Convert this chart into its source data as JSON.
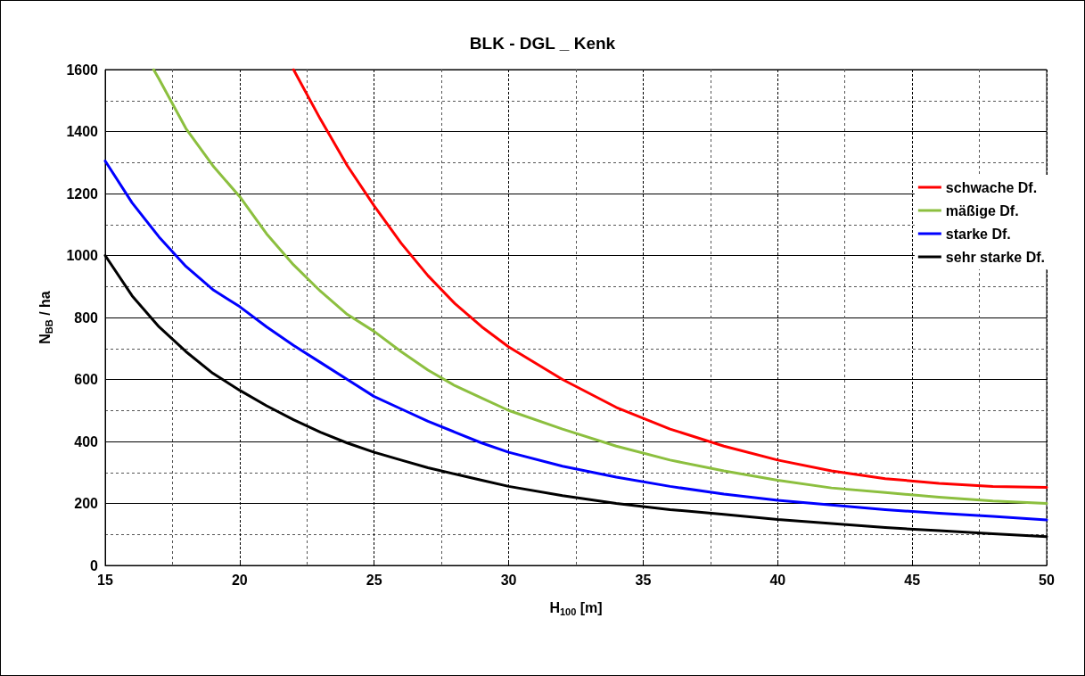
{
  "chart_data": {
    "type": "line",
    "title": "BLK - DGL _ Kenk",
    "xlabel": "H$_{100}$ [m]",
    "ylabel": "N$_{BB}$ / ha",
    "xlim": [
      15,
      50
    ],
    "xticks": [
      15,
      20,
      25,
      30,
      35,
      40,
      45,
      50
    ],
    "ylim": [
      0,
      1600
    ],
    "yticks": [
      0,
      200,
      400,
      600,
      800,
      1000,
      1200,
      1400,
      1600
    ],
    "grid": true,
    "legend": "right",
    "marker": "none",
    "line_style": "solid",
    "series": [
      {
        "name": "schwache Df.",
        "color": "#ff0000",
        "x": [
          22,
          23,
          24,
          25,
          26,
          27,
          28,
          29,
          30,
          32,
          34,
          36,
          38,
          40,
          42,
          44,
          46,
          48,
          50
        ],
        "values": [
          1600,
          1440,
          1290,
          1160,
          1040,
          935,
          845,
          770,
          705,
          600,
          510,
          440,
          385,
          340,
          305,
          280,
          265,
          255,
          252
        ]
      },
      {
        "name": "mäßige Df.",
        "color": "#8cbf3f",
        "x": [
          16.8,
          17,
          18,
          19,
          20,
          21,
          22,
          23,
          24,
          25,
          26,
          27,
          28,
          29,
          30,
          32,
          34,
          36,
          38,
          40,
          42,
          44,
          46,
          48,
          50
        ],
        "values": [
          1600,
          1570,
          1410,
          1290,
          1190,
          1070,
          970,
          885,
          810,
          755,
          690,
          630,
          580,
          540,
          500,
          440,
          385,
          340,
          305,
          275,
          250,
          235,
          220,
          208,
          200
        ]
      },
      {
        "name": "starke Df.",
        "color": "#0000ff",
        "x": [
          15,
          16,
          17,
          18,
          19,
          20,
          21,
          22,
          23,
          24,
          25,
          26,
          27,
          28,
          29,
          30,
          32,
          34,
          36,
          38,
          40,
          42,
          44,
          46,
          48,
          50
        ],
        "values": [
          1305,
          1170,
          1060,
          965,
          890,
          835,
          770,
          710,
          655,
          600,
          545,
          505,
          465,
          430,
          395,
          365,
          320,
          285,
          255,
          230,
          210,
          195,
          180,
          168,
          158,
          147
        ]
      },
      {
        "name": "sehr starke Df.",
        "color": "#000000",
        "x": [
          15,
          16,
          17,
          18,
          19,
          20,
          21,
          22,
          23,
          24,
          25,
          26,
          27,
          28,
          29,
          30,
          32,
          34,
          36,
          38,
          40,
          42,
          44,
          46,
          48,
          50
        ],
        "values": [
          1000,
          870,
          770,
          690,
          620,
          565,
          515,
          470,
          430,
          395,
          365,
          340,
          315,
          295,
          275,
          255,
          225,
          200,
          180,
          165,
          148,
          135,
          122,
          112,
          102,
          93
        ]
      }
    ]
  }
}
